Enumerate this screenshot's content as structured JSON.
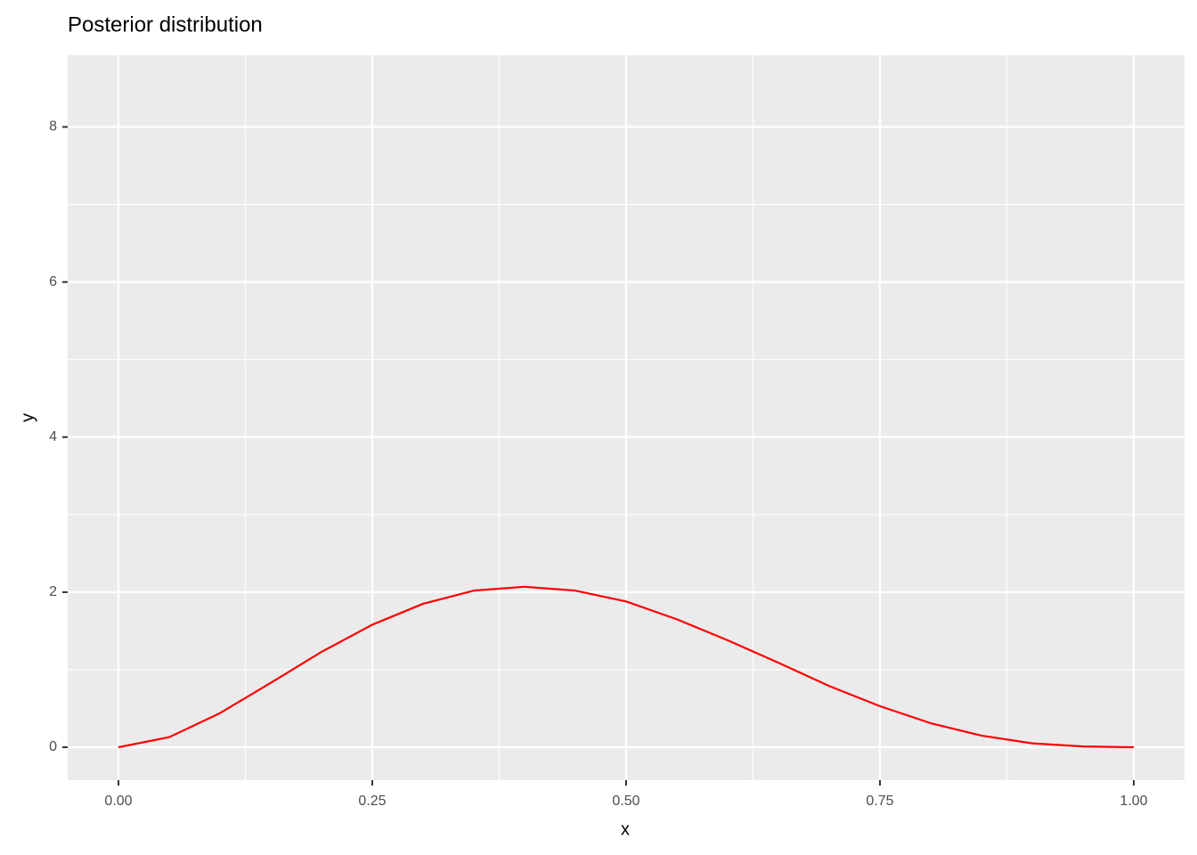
{
  "chart_data": {
    "type": "line",
    "title": "Posterior distribution",
    "x_label": "x",
    "y_label": "y",
    "x": [
      0,
      0.05,
      0.1,
      0.15,
      0.2,
      0.25,
      0.3,
      0.35,
      0.4,
      0.45,
      0.5,
      0.55,
      0.6,
      0.65,
      0.7,
      0.75,
      0.8,
      0.85,
      0.9,
      0.95,
      1
    ],
    "series": [
      {
        "color": "#ff0000",
        "values": [
          0,
          0.13,
          0.44,
          0.83,
          1.23,
          1.58,
          1.85,
          2.02,
          2.07,
          2.02,
          1.88,
          1.65,
          1.38,
          1.09,
          0.79,
          0.53,
          0.31,
          0.15,
          0.05,
          0.01,
          0
        ]
      }
    ],
    "xlim": [
      -0.05,
      1.05
    ],
    "ylim": [
      -0.425,
      8.925
    ],
    "xticks": [
      {
        "value": 0,
        "label": "0.00"
      },
      {
        "value": 0.25,
        "label": "0.25"
      },
      {
        "value": 0.5,
        "label": "0.50"
      },
      {
        "value": 0.75,
        "label": "0.75"
      },
      {
        "value": 1,
        "label": "1.00"
      }
    ],
    "yticks": [
      0,
      2,
      4,
      6,
      8
    ],
    "xminorticks": [
      0.125,
      0.375,
      0.625,
      0.875
    ],
    "yminorticks": [
      1,
      3,
      5,
      7
    ],
    "grid": true
  }
}
